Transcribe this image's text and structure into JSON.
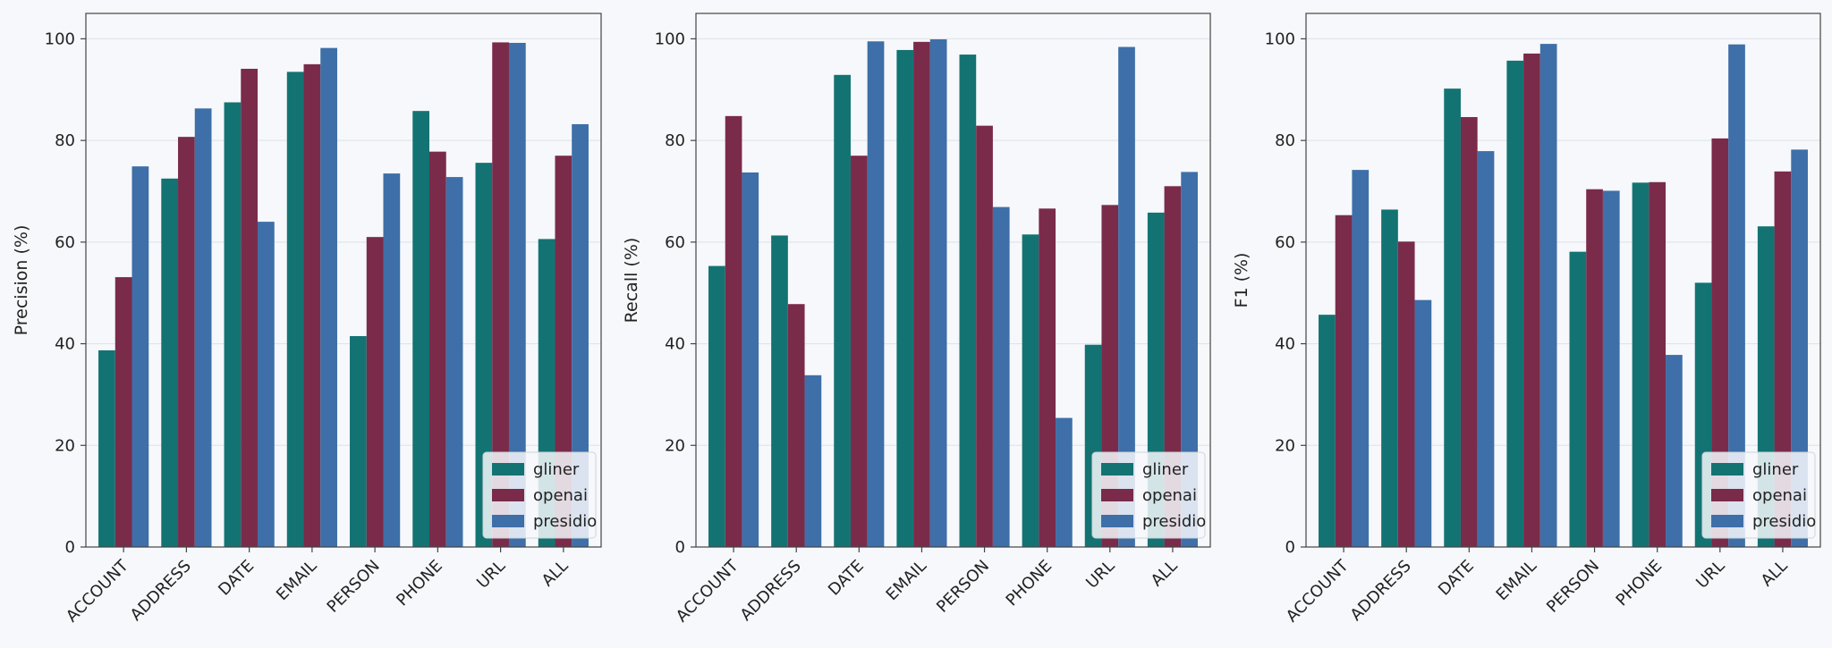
{
  "chart_data": [
    {
      "type": "bar",
      "ylabel": "Precision (%)",
      "ylim": [
        0,
        105
      ],
      "yticks": [
        0,
        20,
        40,
        60,
        80,
        100
      ],
      "grid": "y",
      "legend_position": "lower-right",
      "categories": [
        "ACCOUNT",
        "ADDRESS",
        "DATE",
        "EMAIL",
        "PERSON",
        "PHONE",
        "URL",
        "ALL"
      ],
      "series": [
        {
          "name": "gliner",
          "color": "#137373",
          "values": [
            38.7,
            72.5,
            87.5,
            93.5,
            41.5,
            85.8,
            75.6,
            60.6
          ]
        },
        {
          "name": "openai",
          "color": "#7a2b4a",
          "values": [
            53.1,
            80.7,
            94.1,
            95.0,
            61.0,
            77.8,
            99.3,
            77.0
          ]
        },
        {
          "name": "presidio",
          "color": "#3e6fa8",
          "values": [
            74.9,
            86.3,
            64.0,
            98.2,
            73.5,
            72.8,
            99.2,
            83.2
          ]
        }
      ]
    },
    {
      "type": "bar",
      "ylabel": "Recall (%)",
      "ylim": [
        0,
        105
      ],
      "yticks": [
        0,
        20,
        40,
        60,
        80,
        100
      ],
      "grid": "y",
      "legend_position": "lower-right",
      "categories": [
        "ACCOUNT",
        "ADDRESS",
        "DATE",
        "EMAIL",
        "PERSON",
        "PHONE",
        "URL",
        "ALL"
      ],
      "series": [
        {
          "name": "gliner",
          "color": "#137373",
          "values": [
            55.3,
            61.3,
            92.9,
            97.8,
            96.9,
            61.5,
            39.8,
            65.8
          ]
        },
        {
          "name": "openai",
          "color": "#7a2b4a",
          "values": [
            84.8,
            47.8,
            77.0,
            99.4,
            82.9,
            66.6,
            67.3,
            71.0
          ]
        },
        {
          "name": "presidio",
          "color": "#3e6fa8",
          "values": [
            73.7,
            33.8,
            99.5,
            99.9,
            66.9,
            25.4,
            98.4,
            73.8
          ]
        }
      ]
    },
    {
      "type": "bar",
      "ylabel": "F1 (%)",
      "ylim": [
        0,
        105
      ],
      "yticks": [
        0,
        20,
        40,
        60,
        80,
        100
      ],
      "grid": "y",
      "legend_position": "lower-right",
      "categories": [
        "ACCOUNT",
        "ADDRESS",
        "DATE",
        "EMAIL",
        "PERSON",
        "PHONE",
        "URL",
        "ALL"
      ],
      "series": [
        {
          "name": "gliner",
          "color": "#137373",
          "values": [
            45.7,
            66.4,
            90.2,
            95.7,
            58.1,
            71.7,
            52.0,
            63.1
          ]
        },
        {
          "name": "openai",
          "color": "#7a2b4a",
          "values": [
            65.3,
            60.1,
            84.6,
            97.1,
            70.4,
            71.8,
            80.4,
            73.9
          ]
        },
        {
          "name": "presidio",
          "color": "#3e6fa8",
          "values": [
            74.2,
            48.6,
            77.9,
            99.0,
            70.1,
            37.8,
            98.9,
            78.2
          ]
        }
      ]
    }
  ]
}
